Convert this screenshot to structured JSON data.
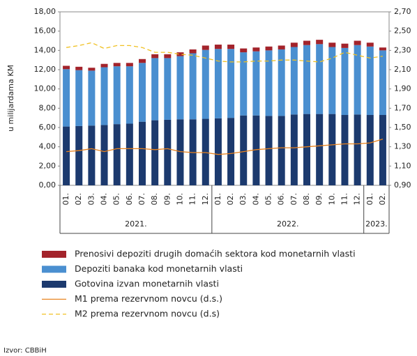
{
  "chart_data": {
    "type": "bar",
    "stacked": true,
    "y_label": "u milijardama KM",
    "source": "Izvor: CBBiH",
    "categories": [
      "01.",
      "02.",
      "03.",
      "04.",
      "05.",
      "06.",
      "07.",
      "08.",
      "09.",
      "10.",
      "11.",
      "12.",
      "01.",
      "02.",
      "03.",
      "04.",
      "05.",
      "06.",
      "07.",
      "08.",
      "09.",
      "10.",
      "11.",
      "12.",
      "01.",
      "02."
    ],
    "category_groups": [
      {
        "label": "2021.",
        "from": 0,
        "to": 11
      },
      {
        "label": "2022.",
        "from": 12,
        "to": 23
      },
      {
        "label": "2023.",
        "from": 24,
        "to": 25
      }
    ],
    "series": [
      {
        "name": "Prenosivi depoziti drugih domaćih sektora kod monetarnih vlasti",
        "type": "bar",
        "color": "#a3232b",
        "values": [
          0.35,
          0.35,
          0.3,
          0.35,
          0.35,
          0.35,
          0.4,
          0.4,
          0.4,
          0.4,
          0.4,
          0.45,
          0.45,
          0.45,
          0.4,
          0.4,
          0.4,
          0.4,
          0.45,
          0.45,
          0.45,
          0.45,
          0.45,
          0.45,
          0.4,
          0.3
        ]
      },
      {
        "name": "Depoziti banaka kod monetarnih vlasti",
        "type": "bar",
        "color": "#4a8fd0",
        "values": [
          5.95,
          5.8,
          5.7,
          6.0,
          6.0,
          5.95,
          6.1,
          6.45,
          6.4,
          6.55,
          6.85,
          7.15,
          7.2,
          7.15,
          6.55,
          6.65,
          6.8,
          6.9,
          7.0,
          7.15,
          7.25,
          6.95,
          6.95,
          7.2,
          7.1,
          6.7
        ]
      },
      {
        "name": "Gotovina izvan monetarnih vlasti",
        "type": "bar",
        "color": "#1c3a6e",
        "values": [
          6.1,
          6.15,
          6.2,
          6.25,
          6.35,
          6.4,
          6.6,
          6.75,
          6.8,
          6.85,
          6.85,
          6.9,
          6.95,
          7.0,
          7.25,
          7.25,
          7.2,
          7.2,
          7.35,
          7.4,
          7.4,
          7.4,
          7.3,
          7.35,
          7.3,
          7.3
        ]
      },
      {
        "name": "M1 prema rezervnom novcu (d.s.)",
        "type": "line",
        "axis": "y2",
        "color": "#e8821e",
        "dashed": false,
        "values": [
          1.25,
          1.26,
          1.28,
          1.25,
          1.28,
          1.28,
          1.28,
          1.27,
          1.28,
          1.25,
          1.24,
          1.24,
          1.22,
          1.23,
          1.25,
          1.27,
          1.28,
          1.29,
          1.29,
          1.3,
          1.31,
          1.32,
          1.33,
          1.33,
          1.34,
          1.38
        ]
      },
      {
        "name": "M2 prema rezervnom novcu (d.s)",
        "type": "line",
        "axis": "y2",
        "color": "#f0c020",
        "dashed": true,
        "values": [
          2.33,
          2.35,
          2.38,
          2.32,
          2.35,
          2.35,
          2.33,
          2.28,
          2.28,
          2.26,
          2.25,
          2.22,
          2.19,
          2.18,
          2.18,
          2.19,
          2.19,
          2.2,
          2.2,
          2.19,
          2.18,
          2.22,
          2.28,
          2.25,
          2.22,
          2.24
        ]
      }
    ],
    "ylim": [
      0,
      18
    ],
    "yticks": [
      {
        "value": 0,
        "label": "0,00"
      },
      {
        "value": 2,
        "label": "2,00"
      },
      {
        "value": 4,
        "label": "4,00"
      },
      {
        "value": 6,
        "label": "6,00"
      },
      {
        "value": 8,
        "label": "8,00"
      },
      {
        "value": 10,
        "label": "10,00"
      },
      {
        "value": 12,
        "label": "12,00"
      },
      {
        "value": 14,
        "label": "14,00"
      },
      {
        "value": 16,
        "label": "16,00"
      },
      {
        "value": 18,
        "label": "18,00"
      }
    ],
    "y2lim": [
      0.9,
      2.7
    ],
    "y2ticks": [
      {
        "value": 0.9,
        "label": "0,90"
      },
      {
        "value": 1.1,
        "label": "1,10"
      },
      {
        "value": 1.3,
        "label": "1,30"
      },
      {
        "value": 1.5,
        "label": "1,50"
      },
      {
        "value": 1.7,
        "label": "1,70"
      },
      {
        "value": 1.9,
        "label": "1,90"
      },
      {
        "value": 2.1,
        "label": "2,10"
      },
      {
        "value": 2.3,
        "label": "2,30"
      },
      {
        "value": 2.5,
        "label": "2,50"
      },
      {
        "value": 2.7,
        "label": "2,70"
      }
    ]
  }
}
